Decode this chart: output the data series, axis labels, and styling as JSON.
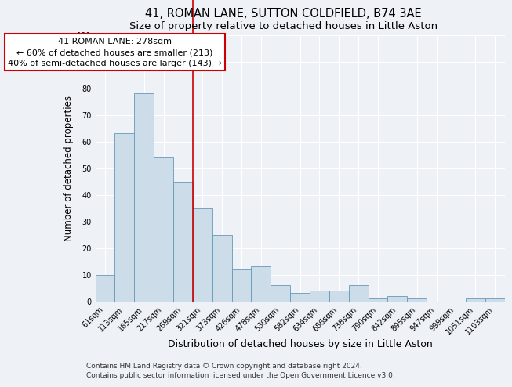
{
  "title": "41, ROMAN LANE, SUTTON COLDFIELD, B74 3AE",
  "subtitle": "Size of property relative to detached houses in Little Aston",
  "xlabel": "Distribution of detached houses by size in Little Aston",
  "ylabel": "Number of detached properties",
  "bin_labels": [
    "61sqm",
    "113sqm",
    "165sqm",
    "217sqm",
    "269sqm",
    "321sqm",
    "373sqm",
    "426sqm",
    "478sqm",
    "530sqm",
    "582sqm",
    "634sqm",
    "686sqm",
    "738sqm",
    "790sqm",
    "842sqm",
    "895sqm",
    "947sqm",
    "999sqm",
    "1051sqm",
    "1103sqm"
  ],
  "bar_values": [
    10,
    63,
    78,
    54,
    45,
    35,
    25,
    12,
    13,
    6,
    3,
    4,
    4,
    6,
    1,
    2,
    1,
    0,
    0,
    1,
    1
  ],
  "bar_color": "#ccdce8",
  "bar_edge_color": "#6699bb",
  "vline_x_index": 4,
  "vline_color": "#cc0000",
  "ylim": [
    0,
    100
  ],
  "yticks": [
    0,
    10,
    20,
    30,
    40,
    50,
    60,
    70,
    80,
    90,
    100
  ],
  "annotation_title": "41 ROMAN LANE: 278sqm",
  "annotation_line1": "← 60% of detached houses are smaller (213)",
  "annotation_line2": "40% of semi-detached houses are larger (143) →",
  "annotation_box_color": "#ffffff",
  "annotation_border_color": "#cc0000",
  "footer1": "Contains HM Land Registry data © Crown copyright and database right 2024.",
  "footer2": "Contains public sector information licensed under the Open Government Licence v3.0.",
  "bg_color": "#eef2f7",
  "grid_color": "#ffffff",
  "title_fontsize": 10.5,
  "subtitle_fontsize": 9.5,
  "xlabel_fontsize": 9,
  "ylabel_fontsize": 8.5,
  "tick_fontsize": 7,
  "annot_fontsize": 8,
  "footer_fontsize": 6.5
}
